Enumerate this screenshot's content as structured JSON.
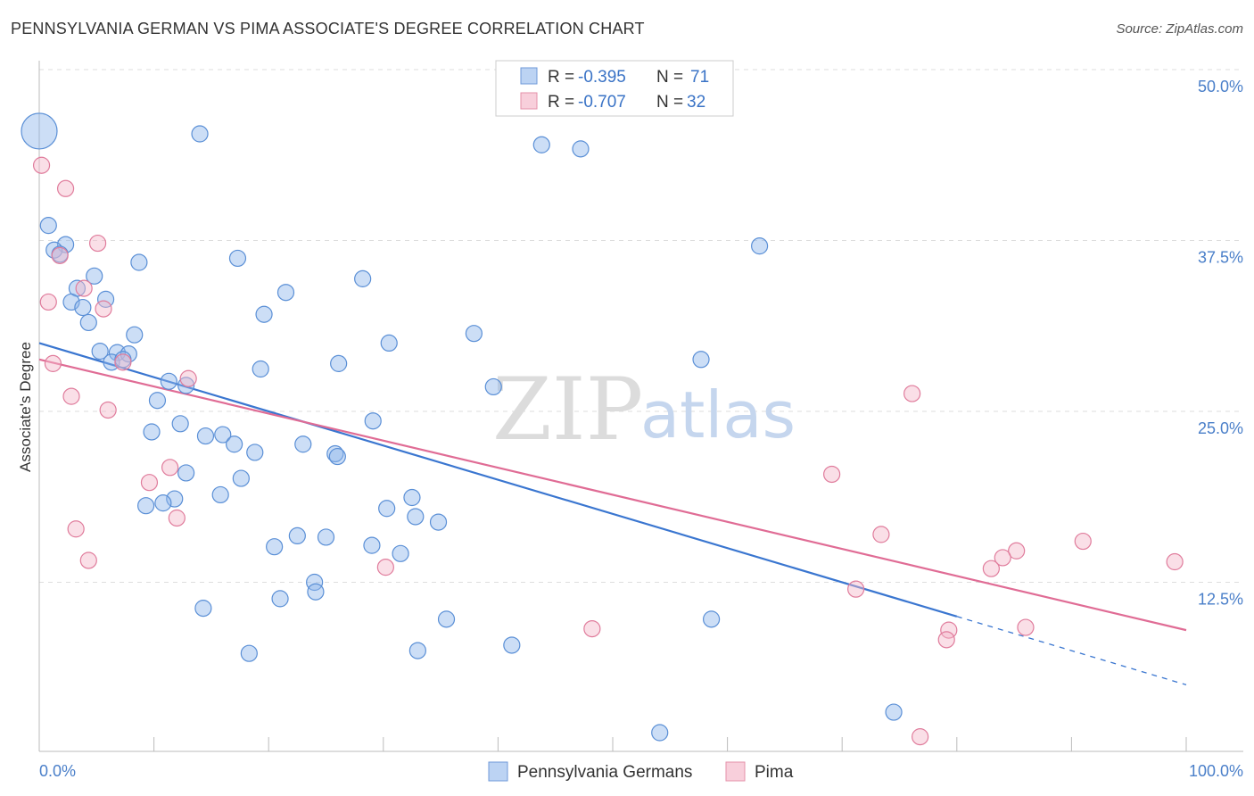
{
  "chart_data": {
    "type": "scatter",
    "title": "PENNSYLVANIA GERMAN VS PIMA ASSOCIATE'S DEGREE CORRELATION CHART",
    "source": "Source: ZipAtlas.com",
    "xlabel": "",
    "ylabel": "Associate's Degree",
    "xlim": [
      0,
      100
    ],
    "ylim": [
      0,
      52
    ],
    "x_tick_labels": [
      "0.0%",
      "100.0%"
    ],
    "y_ticks": [
      12.5,
      25.0,
      37.5,
      50.0
    ],
    "y_tick_labels": [
      "12.5%",
      "25.0%",
      "37.5%",
      "50.0%"
    ],
    "grid": true,
    "watermark": {
      "zip": "ZIP",
      "atlas": "atlas"
    },
    "legend": {
      "r_label": "R =",
      "n_label": "N =",
      "entries": [
        {
          "r": "-0.395",
          "n": "71"
        },
        {
          "r": "-0.707",
          "n": "32"
        }
      ]
    },
    "series": [
      {
        "name": "Pennsylvania Germans",
        "color": "#8fb5ea",
        "stroke": "#5a8fd6",
        "line_color": "#3a76d0",
        "trend": {
          "x0": 0,
          "y0": 30.0,
          "x1": 80,
          "y1": 10.0,
          "dash_to_x": 100,
          "dash_to_y": 5.0
        },
        "points": [
          [
            0.0,
            45.5,
            3
          ],
          [
            14.0,
            45.3,
            1
          ],
          [
            43.8,
            44.5,
            1
          ],
          [
            47.2,
            44.2,
            1
          ],
          [
            0.8,
            38.6,
            1
          ],
          [
            2.3,
            37.2,
            1
          ],
          [
            1.3,
            36.8,
            1
          ],
          [
            1.8,
            36.5,
            1
          ],
          [
            17.3,
            36.2,
            1
          ],
          [
            8.7,
            35.9,
            1
          ],
          [
            62.8,
            37.1,
            1
          ],
          [
            4.8,
            34.9,
            1
          ],
          [
            28.2,
            34.7,
            1
          ],
          [
            3.3,
            34.0,
            1
          ],
          [
            21.5,
            33.7,
            1
          ],
          [
            2.8,
            33.0,
            1
          ],
          [
            5.8,
            33.2,
            1
          ],
          [
            3.8,
            32.6,
            1
          ],
          [
            19.6,
            32.1,
            1
          ],
          [
            4.3,
            31.5,
            1
          ],
          [
            8.3,
            30.6,
            1
          ],
          [
            37.9,
            30.7,
            1
          ],
          [
            30.5,
            30.0,
            1
          ],
          [
            5.3,
            29.4,
            1
          ],
          [
            6.8,
            29.3,
            1
          ],
          [
            7.8,
            29.2,
            1
          ],
          [
            6.3,
            28.6,
            1
          ],
          [
            7.3,
            28.8,
            1
          ],
          [
            57.7,
            28.8,
            1
          ],
          [
            26.1,
            28.5,
            1
          ],
          [
            19.3,
            28.1,
            1
          ],
          [
            11.3,
            27.2,
            1
          ],
          [
            12.8,
            26.9,
            1
          ],
          [
            39.6,
            26.8,
            1
          ],
          [
            10.3,
            25.8,
            1
          ],
          [
            29.1,
            24.3,
            1
          ],
          [
            12.3,
            24.1,
            1
          ],
          [
            9.8,
            23.5,
            1
          ],
          [
            14.5,
            23.2,
            1
          ],
          [
            16.0,
            23.3,
            1
          ],
          [
            17.0,
            22.6,
            1
          ],
          [
            23.0,
            22.6,
            1
          ],
          [
            18.8,
            22.0,
            1
          ],
          [
            25.8,
            21.9,
            1
          ],
          [
            26.0,
            21.7,
            1
          ],
          [
            12.8,
            20.5,
            1
          ],
          [
            17.6,
            20.1,
            1
          ],
          [
            15.8,
            18.9,
            1
          ],
          [
            32.5,
            18.7,
            1
          ],
          [
            11.8,
            18.6,
            1
          ],
          [
            10.8,
            18.3,
            1
          ],
          [
            9.3,
            18.1,
            1
          ],
          [
            30.3,
            17.9,
            1
          ],
          [
            32.8,
            17.3,
            1
          ],
          [
            34.8,
            16.9,
            1
          ],
          [
            22.5,
            15.9,
            1
          ],
          [
            25.0,
            15.8,
            1
          ],
          [
            20.5,
            15.1,
            1
          ],
          [
            29.0,
            15.2,
            1
          ],
          [
            31.5,
            14.6,
            1
          ],
          [
            24.0,
            12.5,
            1
          ],
          [
            24.1,
            11.8,
            1
          ],
          [
            21.0,
            11.3,
            1
          ],
          [
            14.3,
            10.6,
            1
          ],
          [
            35.5,
            9.8,
            1
          ],
          [
            58.6,
            9.8,
            1
          ],
          [
            41.2,
            7.9,
            1
          ],
          [
            18.3,
            7.3,
            1
          ],
          [
            33.0,
            7.5,
            1
          ],
          [
            74.5,
            3.0,
            1
          ],
          [
            54.1,
            1.5,
            1
          ]
        ]
      },
      {
        "name": "Pima",
        "color": "#f5b7c9",
        "stroke": "#e07c9c",
        "line_color": "#e06c95",
        "trend": {
          "x0": 0,
          "y0": 28.8,
          "x1": 100,
          "y1": 9.0
        },
        "points": [
          [
            0.2,
            43.0,
            1
          ],
          [
            2.3,
            41.3,
            1
          ],
          [
            5.1,
            37.3,
            1
          ],
          [
            1.8,
            36.4,
            1
          ],
          [
            3.9,
            34.0,
            1
          ],
          [
            0.8,
            33.0,
            1
          ],
          [
            5.6,
            32.5,
            1
          ],
          [
            7.3,
            28.6,
            1
          ],
          [
            1.2,
            28.5,
            1
          ],
          [
            13.0,
            27.4,
            1
          ],
          [
            2.8,
            26.1,
            1
          ],
          [
            6.0,
            25.1,
            1
          ],
          [
            76.1,
            26.3,
            1
          ],
          [
            11.4,
            20.9,
            1
          ],
          [
            69.1,
            20.4,
            1
          ],
          [
            9.6,
            19.8,
            1
          ],
          [
            12.0,
            17.2,
            1
          ],
          [
            3.2,
            16.4,
            1
          ],
          [
            73.4,
            16.0,
            1
          ],
          [
            91.0,
            15.5,
            1
          ],
          [
            85.2,
            14.8,
            1
          ],
          [
            84.0,
            14.3,
            1
          ],
          [
            4.3,
            14.1,
            1
          ],
          [
            99.0,
            14.0,
            1
          ],
          [
            30.2,
            13.6,
            1
          ],
          [
            83.0,
            13.5,
            1
          ],
          [
            71.2,
            12.0,
            1
          ],
          [
            48.2,
            9.1,
            1
          ],
          [
            86.0,
            9.2,
            1
          ],
          [
            79.3,
            9.0,
            1
          ],
          [
            79.1,
            8.3,
            1
          ],
          [
            76.8,
            1.2,
            1
          ]
        ]
      }
    ]
  }
}
